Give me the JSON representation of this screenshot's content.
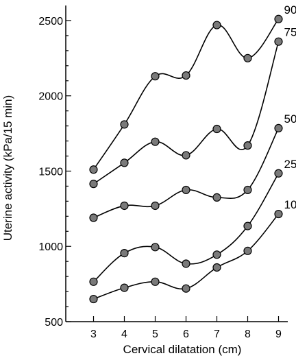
{
  "chart_data": {
    "type": "line",
    "xlabel": "Cervical dilatation (cm)",
    "ylabel": "Uterine activity (kPa/15 min)",
    "x": [
      3,
      4,
      5,
      6,
      7,
      8,
      9
    ],
    "xlim": [
      2.1,
      9.3
    ],
    "ylim": [
      500,
      2600
    ],
    "xticks": [
      "3",
      "4",
      "5",
      "6",
      "7",
      "8",
      "9"
    ],
    "yticks": [
      "500",
      "1000",
      "1500",
      "2000",
      "2500"
    ],
    "grid": false,
    "series": [
      {
        "name": "90",
        "values": [
          1510,
          1810,
          2130,
          2135,
          2470,
          2250,
          2510
        ]
      },
      {
        "name": "75",
        "values": [
          1415,
          1555,
          1695,
          1605,
          1780,
          1670,
          2360
        ]
      },
      {
        "name": "50",
        "values": [
          1190,
          1270,
          1270,
          1375,
          1325,
          1375,
          1785
        ]
      },
      {
        "name": "25",
        "values": [
          765,
          955,
          995,
          885,
          945,
          1135,
          1485
        ]
      },
      {
        "name": "10",
        "values": [
          650,
          725,
          765,
          720,
          860,
          970,
          1215
        ]
      }
    ],
    "colors": {
      "marker_fill": "#7a7a7a",
      "line": "#000000"
    }
  }
}
